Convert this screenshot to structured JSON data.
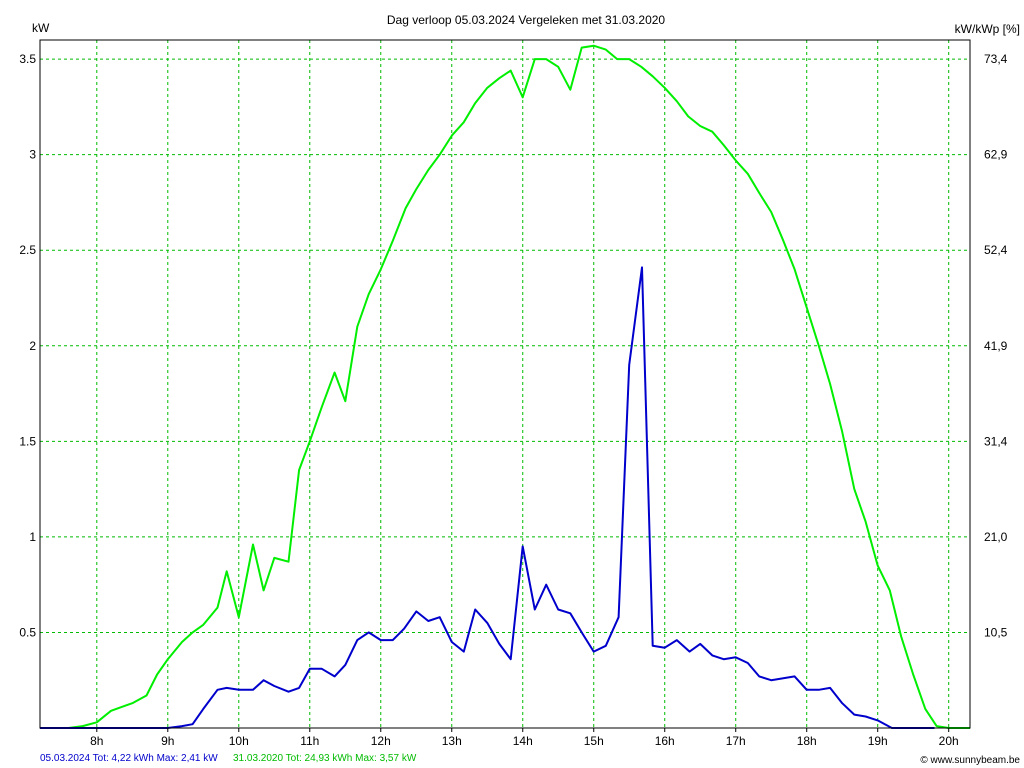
{
  "chart_data": {
    "type": "line",
    "title": "Dag  verloop 05.03.2024   Vergeleken met 31.03.2020",
    "ylabel_left": "kW",
    "ylabel_right": "kW/kWp [%]",
    "y_left_ticks": [
      "0.5",
      "1",
      "1.5",
      "2",
      "2.5",
      "3",
      "3.5"
    ],
    "y_right_ticks": [
      "10,5",
      "21,0",
      "31,4",
      "41,9",
      "52,4",
      "62,9",
      "73,4"
    ],
    "x_ticks": [
      "8h",
      "9h",
      "10h",
      "11h",
      "12h",
      "13h",
      "14h",
      "15h",
      "16h",
      "17h",
      "18h",
      "19h",
      "20h"
    ],
    "xlim": [
      7.2,
      20.3
    ],
    "ylim": [
      0,
      3.6
    ],
    "grid": true,
    "colors": {
      "series_1": "#0000cc",
      "series_2": "#00ee00",
      "grid": "#00bb00",
      "axis": "#000000"
    },
    "series": [
      {
        "name": "05.03.2024",
        "x": [
          7.2,
          8.0,
          8.5,
          9.0,
          9.2,
          9.35,
          9.5,
          9.7,
          9.83,
          10.0,
          10.2,
          10.35,
          10.5,
          10.7,
          10.85,
          11.0,
          11.17,
          11.35,
          11.5,
          11.67,
          11.83,
          12.0,
          12.17,
          12.33,
          12.5,
          12.67,
          12.83,
          13.0,
          13.17,
          13.33,
          13.5,
          13.67,
          13.83,
          14.0,
          14.17,
          14.33,
          14.5,
          14.67,
          14.83,
          15.0,
          15.17,
          15.35,
          15.5,
          15.68,
          15.83,
          16.0,
          16.17,
          16.35,
          16.5,
          16.67,
          16.83,
          17.0,
          17.17,
          17.33,
          17.5,
          17.67,
          17.83,
          18.0,
          18.17,
          18.33,
          18.5,
          18.67,
          18.83,
          19.0,
          19.2,
          19.5,
          19.8
        ],
        "values": [
          0,
          0,
          0,
          0,
          0.01,
          0.02,
          0.1,
          0.2,
          0.21,
          0.2,
          0.2,
          0.25,
          0.22,
          0.19,
          0.21,
          0.31,
          0.31,
          0.27,
          0.33,
          0.46,
          0.5,
          0.46,
          0.46,
          0.52,
          0.61,
          0.56,
          0.58,
          0.45,
          0.4,
          0.62,
          0.55,
          0.44,
          0.36,
          0.95,
          0.62,
          0.75,
          0.62,
          0.6,
          0.5,
          0.4,
          0.43,
          0.58,
          1.9,
          2.41,
          0.43,
          0.42,
          0.46,
          0.4,
          0.44,
          0.38,
          0.36,
          0.37,
          0.34,
          0.27,
          0.25,
          0.26,
          0.27,
          0.2,
          0.2,
          0.21,
          0.13,
          0.07,
          0.06,
          0.04,
          0,
          0,
          0
        ]
      },
      {
        "name": "31.03.2020",
        "x": [
          7.2,
          7.6,
          7.8,
          8.0,
          8.2,
          8.5,
          8.7,
          8.85,
          9.0,
          9.2,
          9.35,
          9.5,
          9.7,
          9.83,
          10.0,
          10.2,
          10.35,
          10.5,
          10.7,
          10.85,
          11.0,
          11.17,
          11.35,
          11.5,
          11.67,
          11.83,
          12.0,
          12.17,
          12.35,
          12.5,
          12.67,
          12.83,
          13.0,
          13.17,
          13.33,
          13.5,
          13.67,
          13.83,
          14.0,
          14.17,
          14.33,
          14.5,
          14.67,
          14.83,
          15.0,
          15.17,
          15.33,
          15.5,
          15.67,
          15.83,
          16.0,
          16.17,
          16.33,
          16.5,
          16.67,
          16.83,
          17.0,
          17.17,
          17.33,
          17.5,
          17.67,
          17.83,
          18.0,
          18.17,
          18.33,
          18.5,
          18.67,
          18.83,
          19.0,
          19.17,
          19.33,
          19.5,
          19.67,
          19.83,
          20.0,
          20.3
        ],
        "values": [
          0,
          0,
          0.01,
          0.03,
          0.09,
          0.13,
          0.17,
          0.28,
          0.36,
          0.45,
          0.5,
          0.54,
          0.63,
          0.82,
          0.58,
          0.96,
          0.72,
          0.89,
          0.87,
          1.35,
          1.5,
          1.68,
          1.86,
          1.71,
          2.1,
          2.27,
          2.4,
          2.55,
          2.72,
          2.82,
          2.92,
          3.0,
          3.1,
          3.17,
          3.27,
          3.35,
          3.4,
          3.44,
          3.3,
          3.5,
          3.5,
          3.46,
          3.34,
          3.56,
          3.57,
          3.55,
          3.5,
          3.5,
          3.46,
          3.41,
          3.35,
          3.28,
          3.2,
          3.15,
          3.12,
          3.05,
          2.97,
          2.9,
          2.8,
          2.7,
          2.55,
          2.4,
          2.2,
          2.0,
          1.8,
          1.55,
          1.25,
          1.08,
          0.85,
          0.72,
          0.48,
          0.28,
          0.1,
          0.01,
          0,
          0
        ]
      }
    ],
    "footer": {
      "series_1_summary": "05.03.2024 Tot: 4,22 kWh Max: 2,41 kW",
      "series_2_summary": "31.03.2020 Tot: 24,93 kWh Max: 3,57 kW",
      "copyright": "© www.sunnybeam.be"
    }
  }
}
